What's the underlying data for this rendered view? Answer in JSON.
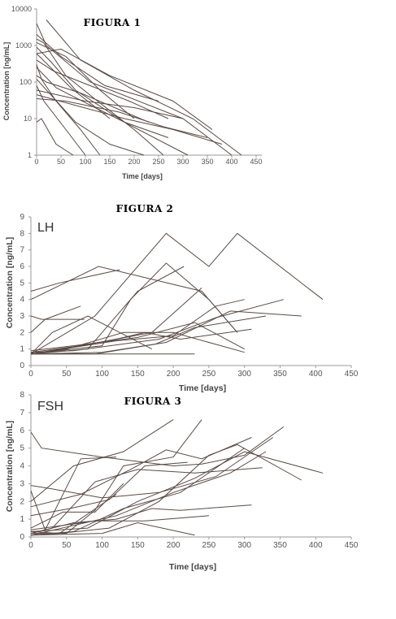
{
  "chart_data": [
    {
      "type": "line",
      "title": "FIGURA 1",
      "panel_label": "",
      "xlabel": "Time [days]",
      "ylabel": "Concentration [ng/mL]",
      "xlim": [
        0,
        450
      ],
      "ylim": [
        1,
        10000
      ],
      "yscale": "log",
      "xticks": [
        "0",
        "50",
        "100",
        "150",
        "200",
        "250",
        "300",
        "350",
        "400",
        "450"
      ],
      "yticks": [
        "1",
        "10",
        "100",
        "1000",
        "10000"
      ],
      "grid": false,
      "series": [
        {
          "x": [
            0,
            14,
            60,
            125,
            200,
            260
          ],
          "y": [
            1500,
            1200,
            150,
            30,
            5,
            1
          ]
        },
        {
          "x": [
            0,
            20,
            110,
            300,
            400
          ],
          "y": [
            4000,
            1000,
            100,
            10,
            1
          ]
        },
        {
          "x": [
            0,
            30,
            80,
            180,
            310
          ],
          "y": [
            900,
            350,
            60,
            8,
            1
          ]
        },
        {
          "x": [
            0,
            10,
            40,
            90,
            130
          ],
          "y": [
            300,
            120,
            30,
            5,
            1
          ]
        },
        {
          "x": [
            0,
            15,
            60,
            100
          ],
          "y": [
            80,
            30,
            5,
            1
          ]
        },
        {
          "x": [
            0,
            10,
            40,
            75
          ],
          "y": [
            8,
            10,
            2,
            1
          ]
        },
        {
          "x": [
            0,
            50,
            150,
            280,
            360
          ],
          "y": [
            600,
            800,
            150,
            30,
            5
          ]
        },
        {
          "x": [
            0,
            60,
            130,
            200
          ],
          "y": [
            1200,
            500,
            60,
            10
          ]
        },
        {
          "x": [
            0,
            40,
            120,
            180,
            270
          ],
          "y": [
            250,
            70,
            20,
            8,
            3
          ]
        },
        {
          "x": [
            0,
            70,
            180,
            280,
            380
          ],
          "y": [
            45,
            25,
            10,
            5,
            2
          ]
        },
        {
          "x": [
            0,
            25,
            70,
            150
          ],
          "y": [
            600,
            280,
            70,
            10
          ]
        },
        {
          "x": [
            0,
            20,
            90,
            160,
            230
          ],
          "y": [
            150,
            100,
            50,
            20,
            8
          ]
        },
        {
          "x": [
            0,
            100,
            200,
            300
          ],
          "y": [
            60,
            30,
            20,
            10
          ]
        },
        {
          "x": [
            20,
            90,
            200,
            320,
            420
          ],
          "y": [
            5000,
            400,
            60,
            10,
            1
          ]
        },
        {
          "x": [
            0,
            50,
            140,
            250
          ],
          "y": [
            2000,
            500,
            80,
            30
          ]
        },
        {
          "x": [
            0,
            35,
            100,
            190,
            270
          ],
          "y": [
            400,
            200,
            90,
            30,
            10
          ]
        },
        {
          "x": [
            0,
            80,
            150,
            220
          ],
          "y": [
            120,
            8,
            2,
            1
          ]
        },
        {
          "x": [
            0,
            60,
            170,
            260,
            350
          ],
          "y": [
            35,
            30,
            15,
            6,
            3
          ]
        }
      ]
    },
    {
      "type": "line",
      "title": "FIGURA 2",
      "panel_label": "LH",
      "xlabel": "Time [days]",
      "ylabel": "Concentration [ng/mL]",
      "xlim": [
        0,
        450
      ],
      "ylim": [
        0,
        9
      ],
      "xticks": [
        "0",
        "50",
        "100",
        "150",
        "200",
        "250",
        "300",
        "350",
        "400",
        "450"
      ],
      "yticks": [
        "0",
        "1",
        "2",
        "3",
        "4",
        "5",
        "6",
        "7",
        "8",
        "9"
      ],
      "grid": false,
      "series": [
        {
          "x": [
            0,
            95,
            240,
            290
          ],
          "y": [
            4,
            6,
            4.5,
            2
          ]
        },
        {
          "x": [
            0,
            40,
            125
          ],
          "y": [
            4.5,
            5,
            5.8
          ]
        },
        {
          "x": [
            0,
            20,
            70
          ],
          "y": [
            2,
            2.8,
            3.6
          ]
        },
        {
          "x": [
            0,
            15,
            75
          ],
          "y": [
            3,
            2.8,
            2.8
          ]
        },
        {
          "x": [
            0,
            90,
            190,
            250,
            290,
            410
          ],
          "y": [
            0.7,
            3,
            8,
            6,
            8,
            4
          ]
        },
        {
          "x": [
            0,
            100,
            140,
            190,
            250,
            290
          ],
          "y": [
            0.7,
            1.2,
            4,
            6.2,
            4,
            2
          ]
        },
        {
          "x": [
            0,
            120,
            200,
            260,
            300
          ],
          "y": [
            0.7,
            1.5,
            1.8,
            3.6,
            4
          ]
        },
        {
          "x": [
            0,
            80,
            150,
            215
          ],
          "y": [
            0.7,
            1,
            4.5,
            6
          ]
        },
        {
          "x": [
            0,
            60,
            180,
            260,
            355
          ],
          "y": [
            0.8,
            0.9,
            1.6,
            2.9,
            4
          ]
        },
        {
          "x": [
            0,
            100,
            190,
            280,
            380
          ],
          "y": [
            0.7,
            0.8,
            1.4,
            3.3,
            3
          ]
        },
        {
          "x": [
            0,
            70,
            170,
            240
          ],
          "y": [
            0.8,
            1.2,
            2,
            4.7
          ]
        },
        {
          "x": [
            0,
            50,
            130,
            200,
            300
          ],
          "y": [
            0.7,
            1,
            2,
            2,
            0.8
          ]
        },
        {
          "x": [
            0,
            230
          ],
          "y": [
            0.7,
            0.7
          ]
        },
        {
          "x": [
            0,
            110,
            160,
            210,
            310
          ],
          "y": [
            0.7,
            1.5,
            2,
            1.6,
            2.2
          ]
        },
        {
          "x": [
            0,
            60,
            150,
            230,
            300
          ],
          "y": [
            0.9,
            1.2,
            1.7,
            2.6,
            1
          ]
        },
        {
          "x": [
            0,
            90,
            175,
            230,
            330
          ],
          "y": [
            0.7,
            0.7,
            1.3,
            2.3,
            3
          ]
        },
        {
          "x": [
            0,
            30,
            80,
            170
          ],
          "y": [
            0.7,
            2,
            3,
            1
          ]
        }
      ]
    },
    {
      "type": "line",
      "title": "FIGURA 3",
      "panel_label": "FSH",
      "xlabel": "Time [days]",
      "ylabel": "Concentration [ng/mL]",
      "xlim": [
        0,
        450
      ],
      "ylim": [
        0,
        8
      ],
      "xticks": [
        "0",
        "50",
        "100",
        "150",
        "200",
        "250",
        "300",
        "350",
        "400",
        "450"
      ],
      "yticks": [
        "0",
        "1",
        "2",
        "3",
        "4",
        "5",
        "6",
        "7",
        "8"
      ],
      "grid": false,
      "series": [
        {
          "x": [
            0,
            15,
            100,
            200,
            240,
            300,
            355
          ],
          "y": [
            5.9,
            5,
            4.5,
            4,
            4.1,
            4.6,
            6.2
          ]
        },
        {
          "x": [
            0,
            60,
            130,
            200
          ],
          "y": [
            2,
            4,
            4.8,
            6.6
          ]
        },
        {
          "x": [
            0,
            30,
            100,
            180,
            260,
            340
          ],
          "y": [
            2.9,
            2.7,
            2.2,
            2.5,
            3.4,
            5.6
          ]
        },
        {
          "x": [
            0,
            50,
            90,
            130,
            200,
            240
          ],
          "y": [
            0.2,
            0.2,
            1.5,
            4,
            4.5,
            6.6
          ]
        },
        {
          "x": [
            0,
            40,
            110,
            180,
            250,
            290,
            380
          ],
          "y": [
            0.1,
            0.2,
            0.5,
            2,
            4.6,
            5.2,
            3.2
          ]
        },
        {
          "x": [
            0,
            80,
            150,
            230,
            300,
            410
          ],
          "y": [
            0.3,
            0.5,
            2,
            3.3,
            4.8,
            3.6
          ]
        },
        {
          "x": [
            0,
            120,
            200,
            280,
            330
          ],
          "y": [
            0.1,
            1.2,
            2.5,
            3.6,
            4.8
          ]
        },
        {
          "x": [
            0,
            60,
            130,
            210,
            300
          ],
          "y": [
            0.1,
            0.3,
            1.6,
            2.5,
            5
          ]
        },
        {
          "x": [
            0,
            70,
            140,
            190,
            240,
            310
          ],
          "y": [
            1.7,
            2.4,
            3.8,
            4.9,
            4.4,
            5.6
          ]
        },
        {
          "x": [
            0,
            30,
            90,
            150,
            230,
            325
          ],
          "y": [
            0.2,
            0.5,
            3.1,
            3.8,
            3.6,
            3.9
          ]
        },
        {
          "x": [
            0,
            55,
            110,
            160,
            220
          ],
          "y": [
            1.2,
            1.6,
            2.1,
            4,
            4.2
          ]
        },
        {
          "x": [
            0,
            45,
            90,
            130
          ],
          "y": [
            0.5,
            1.4,
            1.4,
            3
          ]
        },
        {
          "x": [
            0,
            20,
            70,
            120
          ],
          "y": [
            2.6,
            0.4,
            4.4,
            4.5
          ]
        },
        {
          "x": [
            0,
            100,
            150,
            230
          ],
          "y": [
            0.1,
            0.2,
            0.8,
            0.1
          ]
        },
        {
          "x": [
            0,
            60,
            120,
            170,
            210,
            310
          ],
          "y": [
            0.2,
            0.8,
            1,
            1.6,
            1.5,
            1.8
          ]
        },
        {
          "x": [
            0,
            40,
            80,
            120
          ],
          "y": [
            0.3,
            0.2,
            1.3,
            2.4
          ]
        },
        {
          "x": [
            0,
            90,
            160,
            250
          ],
          "y": [
            0.4,
            0.9,
            0.9,
            1.2
          ]
        }
      ]
    }
  ]
}
